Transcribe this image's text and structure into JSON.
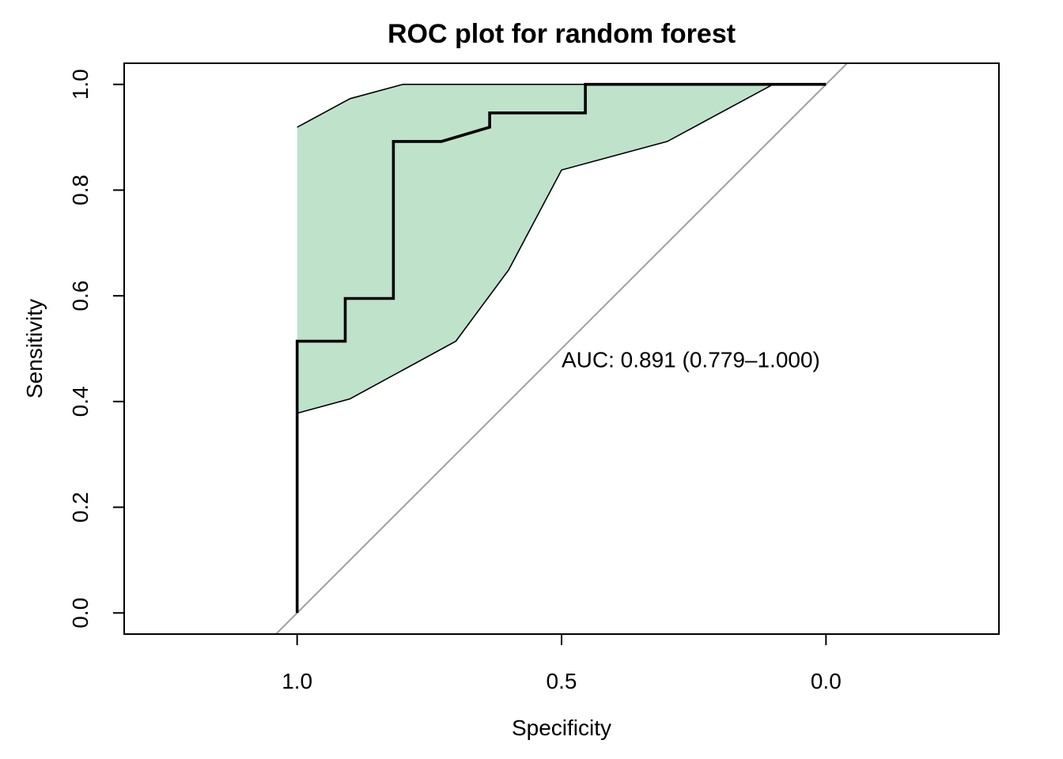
{
  "chart_data": {
    "type": "line",
    "title": "ROC plot for random forest",
    "xlabel": "Specificity",
    "ylabel": "Sensitivity",
    "x_reversed": true,
    "xlim": [
      1.327,
      -0.327
    ],
    "ylim": [
      -0.04,
      1.04
    ],
    "xticks": [
      {
        "value": 1.0,
        "label": "1.0"
      },
      {
        "value": 0.5,
        "label": "0.5"
      },
      {
        "value": 0.0,
        "label": "0.0"
      }
    ],
    "yticks": [
      {
        "value": 0.0,
        "label": "0.0"
      },
      {
        "value": 0.2,
        "label": "0.2"
      },
      {
        "value": 0.4,
        "label": "0.4"
      },
      {
        "value": 0.6,
        "label": "0.6"
      },
      {
        "value": 0.8,
        "label": "0.8"
      },
      {
        "value": 1.0,
        "label": "1.0"
      }
    ],
    "annotation": {
      "text": "AUC: 0.891 (0.779–1.000)",
      "x": 0.5,
      "y": 0.48
    },
    "series": [
      {
        "role": "roc-curve",
        "color": "#000000",
        "points": [
          {
            "specificity": 1.0,
            "sensitivity": 0.0
          },
          {
            "specificity": 1.0,
            "sensitivity": 0.514
          },
          {
            "specificity": 0.909,
            "sensitivity": 0.514
          },
          {
            "specificity": 0.909,
            "sensitivity": 0.595
          },
          {
            "specificity": 0.818,
            "sensitivity": 0.595
          },
          {
            "specificity": 0.818,
            "sensitivity": 0.892
          },
          {
            "specificity": 0.727,
            "sensitivity": 0.892
          },
          {
            "specificity": 0.636,
            "sensitivity": 0.919
          },
          {
            "specificity": 0.636,
            "sensitivity": 0.946
          },
          {
            "specificity": 0.455,
            "sensitivity": 0.946
          },
          {
            "specificity": 0.455,
            "sensitivity": 1.0
          },
          {
            "specificity": 0.0,
            "sensitivity": 1.0
          }
        ]
      },
      {
        "role": "ci-upper",
        "color": "#000000",
        "points": [
          {
            "specificity": 1.0,
            "sensitivity": 0.919
          },
          {
            "specificity": 0.9,
            "sensitivity": 0.973
          },
          {
            "specificity": 0.8,
            "sensitivity": 1.0
          },
          {
            "specificity": 0.1,
            "sensitivity": 1.0
          }
        ]
      },
      {
        "role": "ci-lower",
        "color": "#000000",
        "points": [
          {
            "specificity": 1.0,
            "sensitivity": 0.378
          },
          {
            "specificity": 0.9,
            "sensitivity": 0.405
          },
          {
            "specificity": 0.7,
            "sensitivity": 0.514
          },
          {
            "specificity": 0.6,
            "sensitivity": 0.649
          },
          {
            "specificity": 0.5,
            "sensitivity": 0.838
          },
          {
            "specificity": 0.3,
            "sensitivity": 0.892
          },
          {
            "specificity": 0.1,
            "sensitivity": 1.0
          }
        ]
      },
      {
        "role": "reference-diagonal",
        "color": "#a0a0a0",
        "points": [
          {
            "specificity": 1.04,
            "sensitivity": -0.04
          },
          {
            "specificity": -0.04,
            "sensitivity": 1.04
          }
        ]
      }
    ],
    "ci_fill_color": "#bfe2cb",
    "grid": false,
    "legend": "none"
  }
}
